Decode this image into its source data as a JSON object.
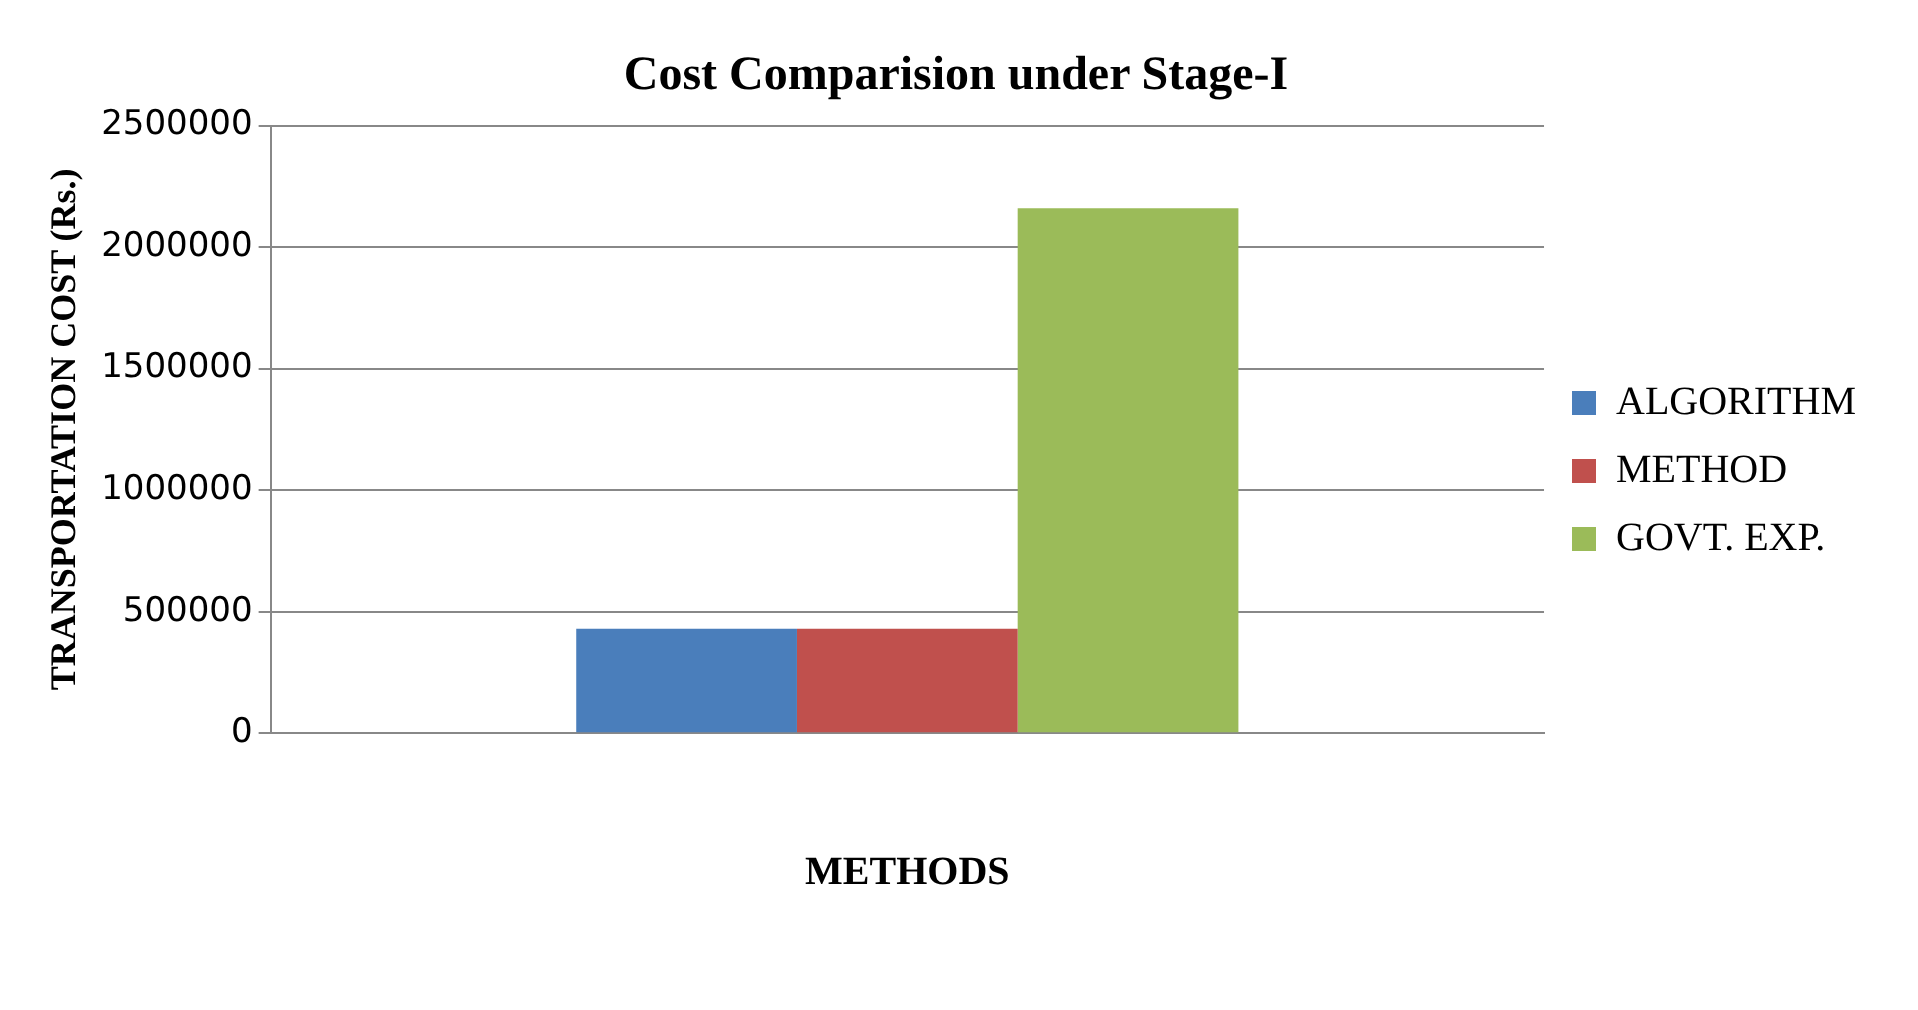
{
  "chart_data": {
    "type": "bar",
    "title": "Cost Comparision under Stage-I",
    "xlabel": "METHODS",
    "ylabel": "TRANSPORTATION COST (Rs.)",
    "categories": [
      null
    ],
    "series": [
      {
        "name": "ALGORITHM",
        "color": "#4a7ebb",
        "values": [
          430000
        ]
      },
      {
        "name": "METHOD",
        "color": "#c0504d",
        "values": [
          430000
        ]
      },
      {
        "name": "GOVT. EXP.",
        "color": "#9bbb59",
        "values": [
          2160000
        ]
      }
    ],
    "ylim": [
      0,
      2500000
    ],
    "yticks": [
      0,
      500000,
      1000000,
      1500000,
      2000000,
      2500000
    ],
    "grid": "y",
    "legend": "right"
  }
}
